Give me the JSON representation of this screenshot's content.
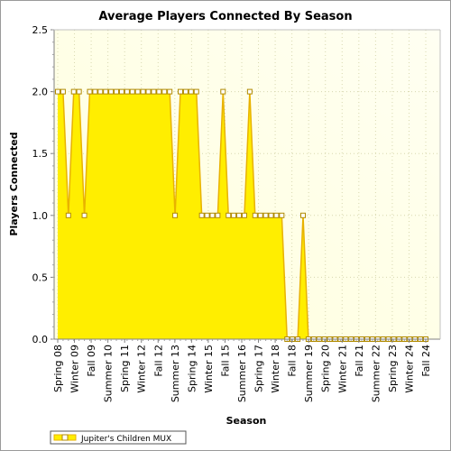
{
  "chart_data": {
    "type": "area",
    "title": "Average Players Connected By Season",
    "xlabel": "Season",
    "ylabel": "Players Connected",
    "ylim": [
      0,
      2.5
    ],
    "y_ticks": [
      "0.0",
      "0.5",
      "1.0",
      "1.5",
      "2.0",
      "2.5"
    ],
    "x_tick_labels": [
      "Spring 08",
      "Winter 09",
      "Fall 09",
      "Summer 10",
      "Spring 11",
      "Winter 12",
      "Fall 12",
      "Summer 13",
      "Spring 14",
      "Winter 15",
      "Fall 15",
      "Summer 16",
      "Spring 17",
      "Winter 18",
      "Fall 18",
      "Summer 19",
      "Spring 20",
      "Winter 21",
      "Fall 21",
      "Summer 22",
      "Spring 23",
      "Winter 24",
      "Fall 24"
    ],
    "grid": true,
    "legend_position": "bottom-left",
    "series": [
      {
        "name": "Jupiter's Children MUX",
        "color": "#ffee00",
        "line_color": "#e8b200",
        "values": [
          2,
          2,
          1,
          2,
          2,
          1,
          2,
          2,
          2,
          2,
          2,
          2,
          2,
          2,
          2,
          2,
          2,
          2,
          2,
          2,
          2,
          2,
          1,
          2,
          2,
          2,
          2,
          1,
          1,
          1,
          1,
          2,
          1,
          1,
          1,
          1,
          2,
          1,
          1,
          1,
          1,
          1,
          1,
          0,
          0,
          0,
          1,
          0,
          0,
          0,
          0,
          0,
          0,
          0,
          0,
          0,
          0,
          0,
          0,
          0,
          0,
          0,
          0,
          0,
          0,
          0,
          0,
          0,
          0,
          0
        ]
      }
    ]
  }
}
